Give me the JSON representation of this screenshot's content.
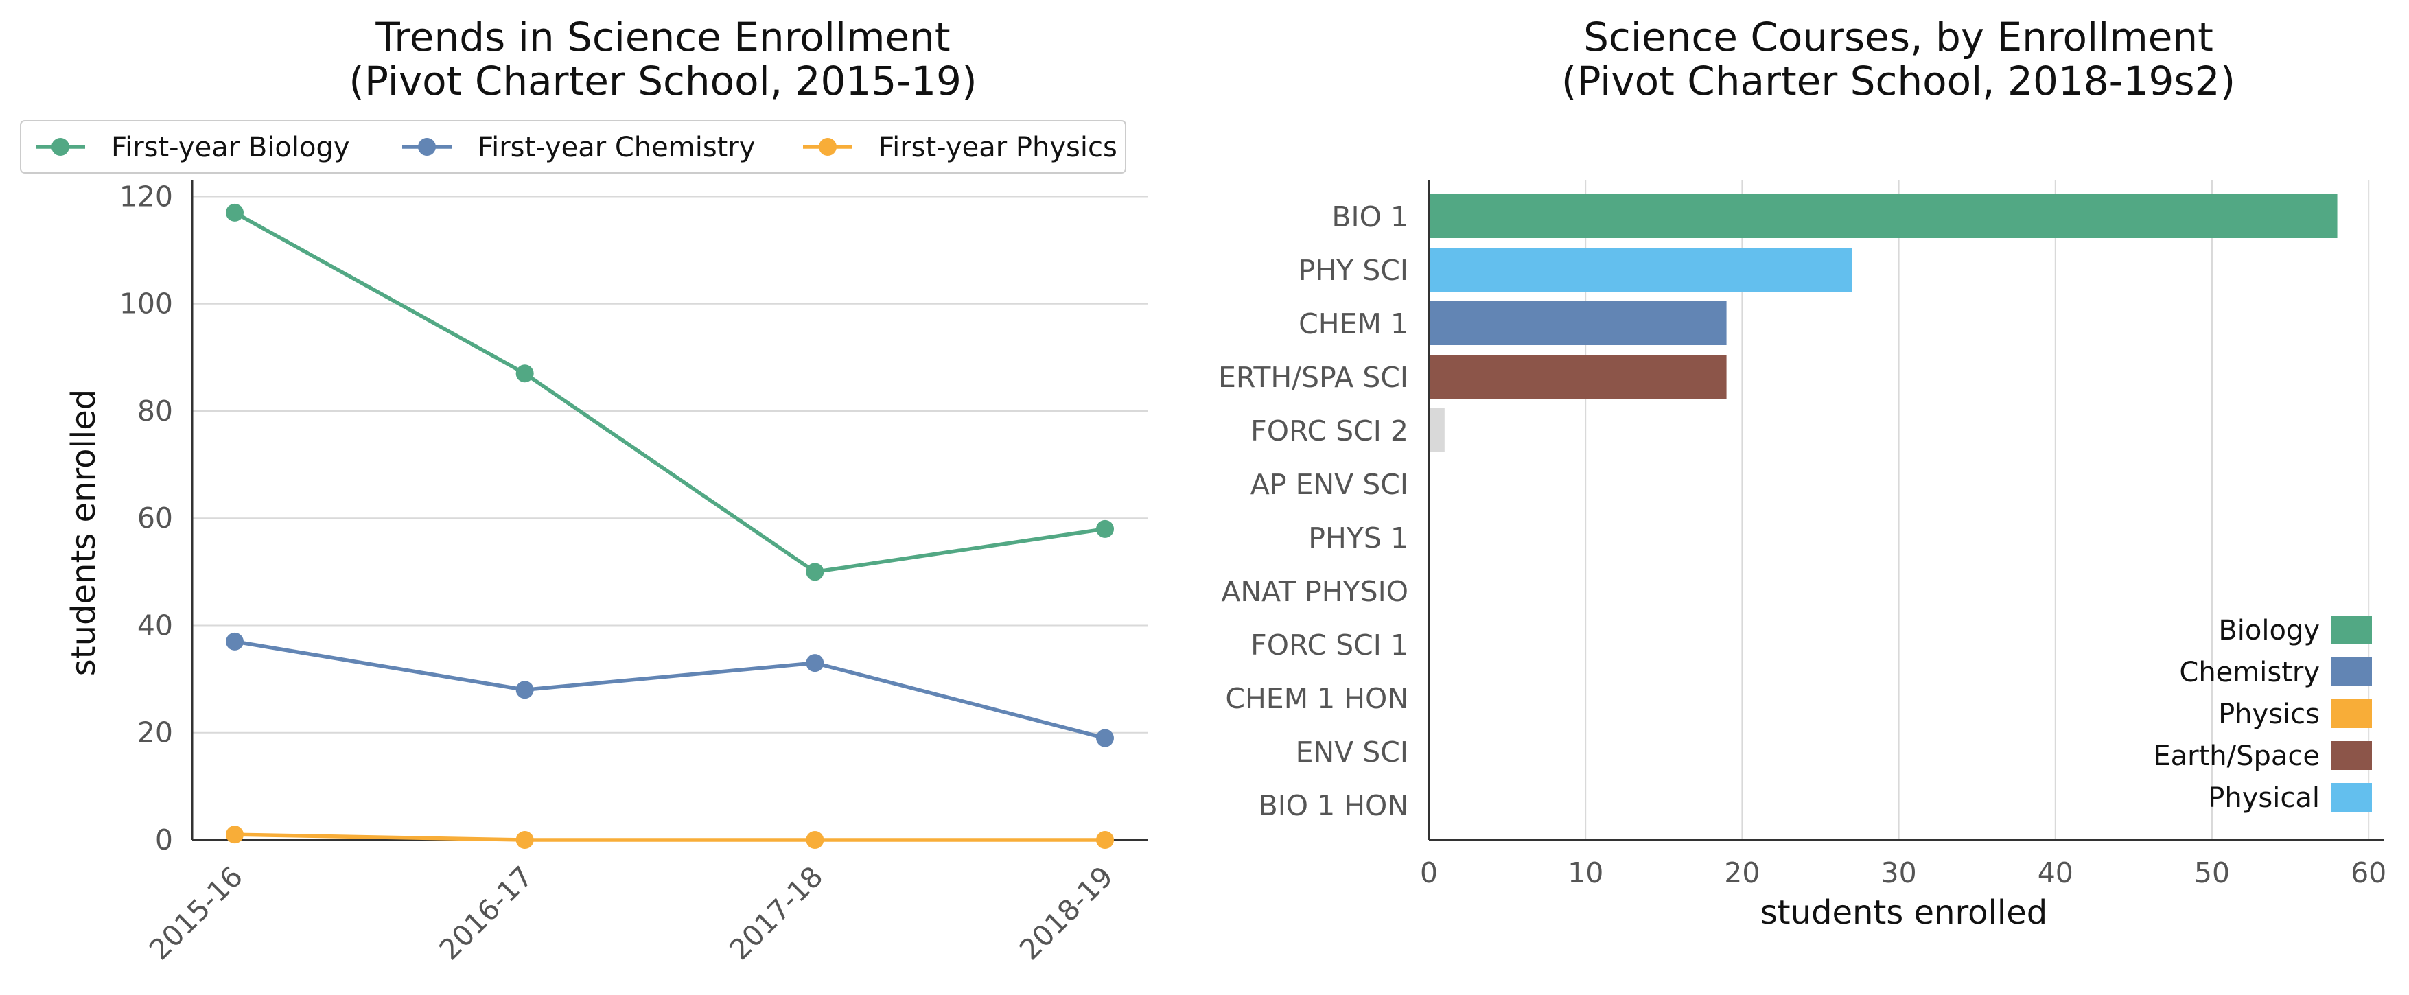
{
  "colors": {
    "biology": "#52a884",
    "chemistry": "#6285b4",
    "physics": "#f8ad38",
    "earth_space": "#8c5549",
    "physical": "#63bfee",
    "other": "#d9d9d9",
    "grid": "#d9d9d9",
    "axis": "#333333"
  },
  "chart_data": [
    {
      "type": "line",
      "title_line1": "Trends in Science Enrollment",
      "title_line2": "(Pivot Charter School, 2015-19)",
      "xlabel": "",
      "ylabel": "students enrolled",
      "categories": [
        "2015-16",
        "2016-17",
        "2017-18",
        "2018-19"
      ],
      "ylim": [
        0,
        123
      ],
      "yticks": [
        0,
        20,
        40,
        60,
        80,
        100,
        120
      ],
      "grid": "horizontal",
      "legend_position": "top",
      "series": [
        {
          "name": "First-year Biology",
          "color_key": "biology",
          "values": [
            117,
            87,
            50,
            58
          ]
        },
        {
          "name": "First-year Chemistry",
          "color_key": "chemistry",
          "values": [
            37,
            28,
            33,
            19
          ]
        },
        {
          "name": "First-year Physics",
          "color_key": "physics",
          "values": [
            1,
            0,
            0,
            0
          ]
        }
      ]
    },
    {
      "type": "bar",
      "orientation": "horizontal",
      "title_line1": "Science Courses, by Enrollment",
      "title_line2": "(Pivot Charter School, 2018-19s2)",
      "xlabel": "students enrolled",
      "ylabel": "",
      "xlim": [
        0,
        61
      ],
      "xticks": [
        0,
        10,
        20,
        30,
        40,
        50,
        60
      ],
      "grid": "vertical",
      "legend_position": "lower right",
      "categories": [
        "BIO 1",
        "PHY SCI",
        "CHEM 1",
        "ERTH/SPA SCI",
        "FORC SCI 2",
        "AP ENV SCI",
        "PHYS 1",
        "ANAT PHYSIO",
        "FORC SCI 1",
        "CHEM 1 HON",
        "ENV SCI",
        "BIO 1 HON"
      ],
      "values": [
        58,
        27,
        19,
        19,
        1,
        0,
        0,
        0,
        0,
        0,
        0,
        0
      ],
      "color_keys": [
        "biology",
        "physical",
        "chemistry",
        "earth_space",
        "other",
        "other",
        "other",
        "other",
        "other",
        "other",
        "other",
        "other"
      ],
      "legend": [
        {
          "label": "Biology",
          "color_key": "biology"
        },
        {
          "label": "Chemistry",
          "color_key": "chemistry"
        },
        {
          "label": "Physics",
          "color_key": "physics"
        },
        {
          "label": "Earth/Space",
          "color_key": "earth_space"
        },
        {
          "label": "Physical",
          "color_key": "physical"
        }
      ]
    }
  ]
}
